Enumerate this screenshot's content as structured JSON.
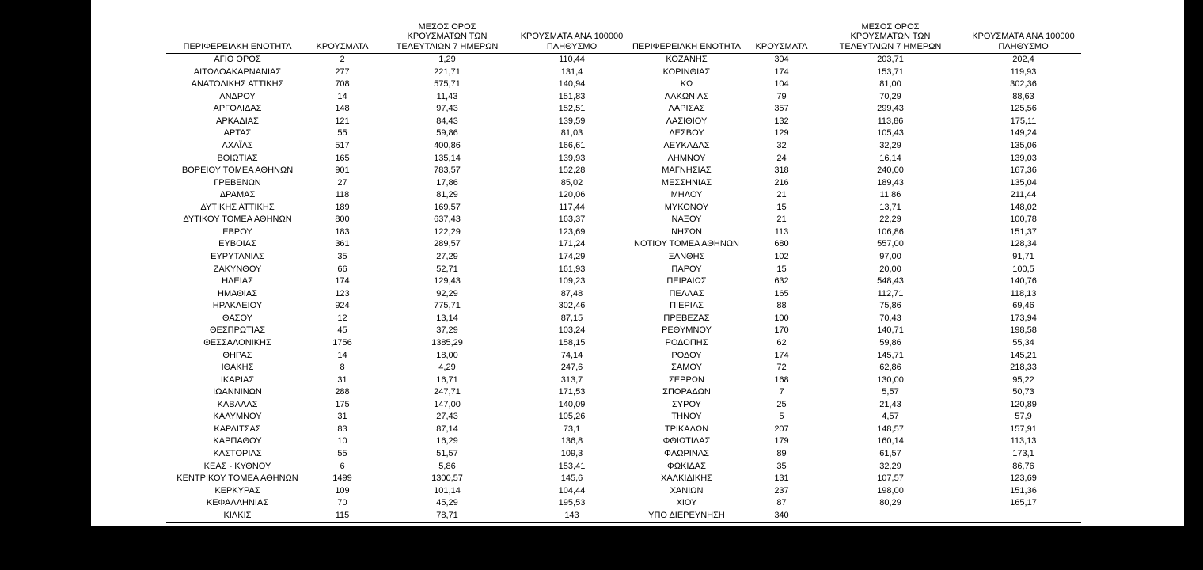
{
  "page": {
    "background_color": "#000000",
    "paper_color": "#ffffff",
    "text_color": "#000000"
  },
  "table": {
    "header": {
      "region": "ΠΕΡΙΦΕΡΕΙΑΚΗ ΕΝΟΤΗΤΑ",
      "cases": "ΚΡΟΥΣΜΑΤΑ",
      "avg7_lines": [
        "ΜΕΣΟΣ ΟΡΟΣ",
        "ΚΡΟΥΣΜΑΤΩΝ ΤΩΝ",
        "ΤΕΛΕΥΤΑΙΩΝ 7 ΗΜΕΡΩΝ"
      ],
      "per100k_lines": [
        "ΚΡΟΥΣΜΑΤΑ ΑΝΑ 100000",
        "ΠΛΗΘΥΣΜΟ"
      ]
    },
    "left_rows": [
      [
        "ΑΓΙΟ ΟΡΟΣ",
        "2",
        "1,29",
        "110,44"
      ],
      [
        "ΑΙΤΩΛΟΑΚΑΡΝΑΝΙΑΣ",
        "277",
        "221,71",
        "131,4"
      ],
      [
        "ΑΝΑΤΟΛΙΚΗΣ ΑΤΤΙΚΗΣ",
        "708",
        "575,71",
        "140,94"
      ],
      [
        "ΑΝΔΡΟΥ",
        "14",
        "11,43",
        "151,83"
      ],
      [
        "ΑΡΓΟΛΙΔΑΣ",
        "148",
        "97,43",
        "152,51"
      ],
      [
        "ΑΡΚΑΔΙΑΣ",
        "121",
        "84,43",
        "139,59"
      ],
      [
        "ΑΡΤΑΣ",
        "55",
        "59,86",
        "81,03"
      ],
      [
        "ΑΧΑΪΑΣ",
        "517",
        "400,86",
        "166,61"
      ],
      [
        "ΒΟΙΩΤΙΑΣ",
        "165",
        "135,14",
        "139,93"
      ],
      [
        "ΒΟΡΕΙΟΥ ΤΟΜΕΑ ΑΘΗΝΩΝ",
        "901",
        "783,57",
        "152,28"
      ],
      [
        "ΓΡΕΒΕΝΩΝ",
        "27",
        "17,86",
        "85,02"
      ],
      [
        "ΔΡΑΜΑΣ",
        "118",
        "81,29",
        "120,06"
      ],
      [
        "ΔΥΤΙΚΗΣ ΑΤΤΙΚΗΣ",
        "189",
        "169,57",
        "117,44"
      ],
      [
        "ΔΥΤΙΚΟΥ ΤΟΜΕΑ ΑΘΗΝΩΝ",
        "800",
        "637,43",
        "163,37"
      ],
      [
        "ΕΒΡΟΥ",
        "183",
        "122,29",
        "123,69"
      ],
      [
        "ΕΥΒΟΙΑΣ",
        "361",
        "289,57",
        "171,24"
      ],
      [
        "ΕΥΡΥΤΑΝΙΑΣ",
        "35",
        "27,29",
        "174,29"
      ],
      [
        "ΖΑΚΥΝΘΟΥ",
        "66",
        "52,71",
        "161,93"
      ],
      [
        "ΗΛΕΙΑΣ",
        "174",
        "129,43",
        "109,23"
      ],
      [
        "ΗΜΑΘΙΑΣ",
        "123",
        "92,29",
        "87,48"
      ],
      [
        "ΗΡΑΚΛΕΙΟΥ",
        "924",
        "775,71",
        "302,46"
      ],
      [
        "ΘΑΣΟΥ",
        "12",
        "13,14",
        "87,15"
      ],
      [
        "ΘΕΣΠΡΩΤΙΑΣ",
        "45",
        "37,29",
        "103,24"
      ],
      [
        "ΘΕΣΣΑΛΟΝΙΚΗΣ",
        "1756",
        "1385,29",
        "158,15"
      ],
      [
        "ΘΗΡΑΣ",
        "14",
        "18,00",
        "74,14"
      ],
      [
        "ΙΘΑΚΗΣ",
        "8",
        "4,29",
        "247,6"
      ],
      [
        "ΙΚΑΡΙΑΣ",
        "31",
        "16,71",
        "313,7"
      ],
      [
        "ΙΩΑΝΝΙΝΩΝ",
        "288",
        "247,71",
        "171,53"
      ],
      [
        "ΚΑΒΑΛΑΣ",
        "175",
        "147,00",
        "140,09"
      ],
      [
        "ΚΑΛΥΜΝΟΥ",
        "31",
        "27,43",
        "105,26"
      ],
      [
        "ΚΑΡΔΙΤΣΑΣ",
        "83",
        "87,14",
        "73,1"
      ],
      [
        "ΚΑΡΠΑΘΟΥ",
        "10",
        "16,29",
        "136,8"
      ],
      [
        "ΚΑΣΤΟΡΙΑΣ",
        "55",
        "51,57",
        "109,3"
      ],
      [
        "ΚΕΑΣ - ΚΥΘΝΟΥ",
        "6",
        "5,86",
        "153,41"
      ],
      [
        "ΚΕΝΤΡΙΚΟΥ ΤΟΜΕΑ ΑΘΗΝΩΝ",
        "1499",
        "1300,57",
        "145,6"
      ],
      [
        "ΚΕΡΚΥΡΑΣ",
        "109",
        "101,14",
        "104,44"
      ],
      [
        "ΚΕΦΑΛΛΗΝΙΑΣ",
        "70",
        "45,29",
        "195,53"
      ],
      [
        "ΚΙΛΚΙΣ",
        "115",
        "78,71",
        "143"
      ]
    ],
    "right_rows": [
      [
        "ΚΟΖΑΝΗΣ",
        "304",
        "203,71",
        "202,4"
      ],
      [
        "ΚΟΡΙΝΘΙΑΣ",
        "174",
        "153,71",
        "119,93"
      ],
      [
        "ΚΩ",
        "104",
        "81,00",
        "302,36"
      ],
      [
        "ΛΑΚΩΝΙΑΣ",
        "79",
        "70,29",
        "88,63"
      ],
      [
        "ΛΑΡΙΣΑΣ",
        "357",
        "299,43",
        "125,56"
      ],
      [
        "ΛΑΣΙΘΙΟΥ",
        "132",
        "113,86",
        "175,11"
      ],
      [
        "ΛΕΣΒΟΥ",
        "129",
        "105,43",
        "149,24"
      ],
      [
        "ΛΕΥΚΑΔΑΣ",
        "32",
        "32,29",
        "135,06"
      ],
      [
        "ΛΗΜΝΟΥ",
        "24",
        "16,14",
        "139,03"
      ],
      [
        "ΜΑΓΝΗΣΙΑΣ",
        "318",
        "240,00",
        "167,36"
      ],
      [
        "ΜΕΣΣΗΝΙΑΣ",
        "216",
        "189,43",
        "135,04"
      ],
      [
        "ΜΗΛΟΥ",
        "21",
        "11,86",
        "211,44"
      ],
      [
        "ΜΥΚΟΝΟΥ",
        "15",
        "13,71",
        "148,02"
      ],
      [
        "ΝΑΞΟΥ",
        "21",
        "22,29",
        "100,78"
      ],
      [
        "ΝΗΣΩΝ",
        "113",
        "106,86",
        "151,37"
      ],
      [
        "ΝΟΤΙΟΥ ΤΟΜΕΑ ΑΘΗΝΩΝ",
        "680",
        "557,00",
        "128,34"
      ],
      [
        "ΞΑΝΘΗΣ",
        "102",
        "97,00",
        "91,71"
      ],
      [
        "ΠΑΡΟΥ",
        "15",
        "20,00",
        "100,5"
      ],
      [
        "ΠΕΙΡΑΙΩΣ",
        "632",
        "548,43",
        "140,76"
      ],
      [
        "ΠΕΛΛΑΣ",
        "165",
        "112,71",
        "118,13"
      ],
      [
        "ΠΙΕΡΙΑΣ",
        "88",
        "75,86",
        "69,46"
      ],
      [
        "ΠΡΕΒΕΖΑΣ",
        "100",
        "70,43",
        "173,94"
      ],
      [
        "ΡΕΘΥΜΝΟΥ",
        "170",
        "140,71",
        "198,58"
      ],
      [
        "ΡΟΔΟΠΗΣ",
        "62",
        "59,86",
        "55,34"
      ],
      [
        "ΡΟΔΟΥ",
        "174",
        "145,71",
        "145,21"
      ],
      [
        "ΣΑΜΟΥ",
        "72",
        "62,86",
        "218,33"
      ],
      [
        "ΣΕΡΡΩΝ",
        "168",
        "130,00",
        "95,22"
      ],
      [
        "ΣΠΟΡΑΔΩΝ",
        "7",
        "5,57",
        "50,73"
      ],
      [
        "ΣΥΡΟΥ",
        "25",
        "21,43",
        "120,89"
      ],
      [
        "ΤΗΝΟΥ",
        "5",
        "4,57",
        "57,9"
      ],
      [
        "ΤΡΙΚΑΛΩΝ",
        "207",
        "148,57",
        "157,91"
      ],
      [
        "ΦΘΙΩΤΙΔΑΣ",
        "179",
        "160,14",
        "113,13"
      ],
      [
        "ΦΛΩΡΙΝΑΣ",
        "89",
        "61,57",
        "173,1"
      ],
      [
        "ΦΩΚΙΔΑΣ",
        "35",
        "32,29",
        "86,76"
      ],
      [
        "ΧΑΛΚΙΔΙΚΗΣ",
        "131",
        "107,57",
        "123,69"
      ],
      [
        "ΧΑΝΙΩΝ",
        "237",
        "198,00",
        "151,36"
      ],
      [
        "ΧΙΟΥ",
        "87",
        "80,29",
        "165,17"
      ],
      [
        "ΥΠΟ ΔΙΕΡΕΥΝΗΣΗ",
        "340",
        "",
        ""
      ]
    ]
  }
}
